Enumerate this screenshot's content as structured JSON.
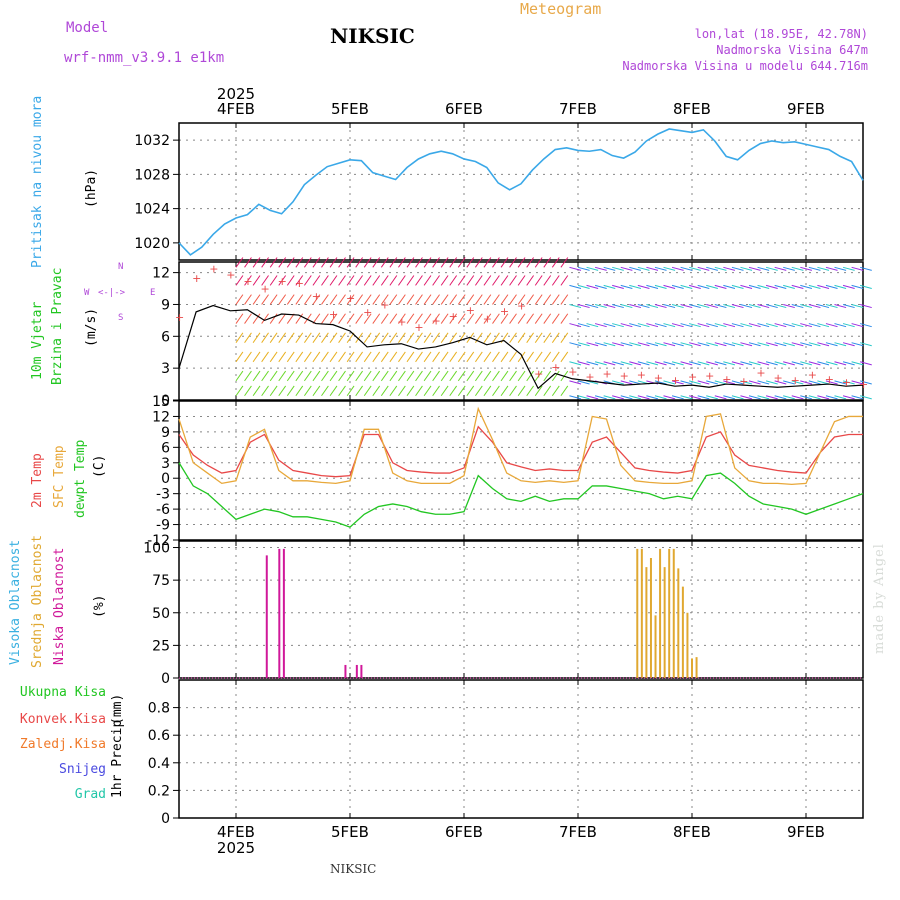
{
  "header": {
    "model_label": "Model",
    "model_name": "wrf-nmm_v3.9.1 e1km",
    "station": "NIKSIC",
    "chart_kind": "Meteogram",
    "coords": "lon,lat (18.95E, 42.78N)",
    "elevation": "Nadmorska Visina 647m",
    "model_elevation": "Nadmorska Visina u modelu 644.716m"
  },
  "footer": {
    "station": "NIKSIC",
    "credit": "made by Angel"
  },
  "colors": {
    "pressure": "#3aa8e8",
    "temp2m": "#e84848",
    "sfc": "#e8a83a",
    "dew": "#22c622",
    "high_cloud": "#3ab0e0",
    "mid_cloud": "#e0a830",
    "low_cloud": "#d0189a"
  },
  "chart_data": [
    {
      "type": "line",
      "panel": "pressure",
      "ylabel_lines": [
        "Pritisak na nivou mora"
      ],
      "unit": "(hPa)",
      "ylim": [
        1018,
        1034
      ],
      "yticks": [
        1020,
        1024,
        1028,
        1032
      ],
      "x_top_year": "2025",
      "x_ticks": [
        "4FEB",
        "5FEB",
        "6FEB",
        "7FEB",
        "8FEB",
        "9FEB"
      ],
      "x": [
        0,
        0.1,
        0.2,
        0.3,
        0.4,
        0.5,
        0.6,
        0.7,
        0.8,
        0.9,
        1.0,
        1.1,
        1.2,
        1.3,
        1.4,
        1.5,
        1.6,
        1.7,
        1.8,
        1.9,
        2.0,
        2.1,
        2.2,
        2.3,
        2.4,
        2.5,
        2.6,
        2.7,
        2.8,
        2.9,
        3.0,
        3.1,
        3.2,
        3.3,
        3.4,
        3.5,
        3.6,
        3.7,
        3.8,
        3.9,
        4.0,
        4.1,
        4.2,
        4.3,
        4.4,
        4.5,
        4.6,
        4.7,
        4.8,
        4.9,
        5.0,
        5.1,
        5.2,
        5.3,
        5.4,
        5.5,
        5.6,
        5.7,
        5.8,
        5.9,
        6.0
      ],
      "series": [
        {
          "values": [
            1020.0,
            1018.6,
            1019.5,
            1021.0,
            1022.2,
            1022.9,
            1023.3,
            1024.5,
            1023.8,
            1023.4,
            1024.8,
            1026.8,
            1027.9,
            1028.9,
            1029.3,
            1029.7,
            1029.6,
            1028.2,
            1027.8,
            1027.4,
            1028.8,
            1029.8,
            1030.4,
            1030.7,
            1030.4,
            1029.8,
            1029.5,
            1028.8,
            1027.0,
            1026.2,
            1026.9,
            1028.5,
            1029.8,
            1030.9,
            1031.1,
            1030.8,
            1030.7,
            1030.9,
            1030.2,
            1029.9,
            1030.6,
            1031.9,
            1032.7,
            1033.3,
            1033.1,
            1032.9,
            1033.2,
            1031.9,
            1030.1,
            1029.7,
            1030.8,
            1031.6,
            1031.9,
            1031.7,
            1031.8,
            1031.5,
            1031.2,
            1030.9,
            1030.1,
            1029.5,
            1027.3
          ]
        }
      ]
    },
    {
      "type": "line",
      "panel": "wind",
      "ylabel_lines": [
        "10m Vjetar",
        "Brzina i Pravac"
      ],
      "unit": "(m/s)",
      "compass": {
        "north": "N",
        "south": "S",
        "east": "E",
        "west": "W"
      },
      "ylim": [
        0,
        13
      ],
      "yticks": [
        0,
        3,
        6,
        9,
        12
      ],
      "x": [
        0,
        0.15,
        0.3,
        0.45,
        0.6,
        0.75,
        0.9,
        1.05,
        1.2,
        1.35,
        1.5,
        1.65,
        1.8,
        1.95,
        2.1,
        2.25,
        2.4,
        2.55,
        2.7,
        2.85,
        3.0,
        3.15,
        3.3,
        3.45,
        3.6,
        3.75,
        3.9,
        4.05,
        4.2,
        4.35,
        4.5,
        4.65,
        4.8,
        4.95,
        5.1,
        5.25,
        5.4,
        5.55,
        5.7,
        5.85,
        6.0
      ],
      "series": [
        {
          "values": [
            3.0,
            8.3,
            8.9,
            8.4,
            8.5,
            7.5,
            8.1,
            8.0,
            7.2,
            7.1,
            6.5,
            5.0,
            5.2,
            5.3,
            4.8,
            5.0,
            5.4,
            5.9,
            5.2,
            5.6,
            4.3,
            1.1,
            2.5,
            2.0,
            1.8,
            1.6,
            1.4,
            1.5,
            1.6,
            1.3,
            1.4,
            1.2,
            1.5,
            1.4,
            1.3,
            1.2,
            1.3,
            1.4,
            1.5,
            1.3,
            1.4
          ]
        },
        {
          "values": [
            7.8,
            11.5,
            12.4,
            11.8,
            11.2,
            10.5,
            11.2,
            11.0,
            9.8,
            8.1,
            9.6,
            8.3,
            9.0,
            7.4,
            6.9,
            7.5,
            7.9,
            8.5,
            7.7,
            8.4,
            8.9,
            2.5,
            3.1,
            2.7,
            2.2,
            2.5,
            2.3,
            2.4,
            2.1,
            1.9,
            2.2,
            2.3,
            2.0,
            1.8,
            2.6,
            2.1,
            1.9,
            2.4,
            2.0,
            1.7,
            1.5
          ]
        }
      ]
    },
    {
      "type": "line",
      "panel": "temperature",
      "ylabel_lines": [
        "2m Temp",
        "SFC Temp",
        "dewpt Temp"
      ],
      "unit": "(C)",
      "ylim": [
        -12,
        15
      ],
      "yticks": [
        -12,
        -9,
        -6,
        -3,
        0,
        3,
        6,
        9,
        12,
        15
      ],
      "x": [
        0,
        0.125,
        0.25,
        0.375,
        0.5,
        0.625,
        0.75,
        0.875,
        1.0,
        1.125,
        1.25,
        1.375,
        1.5,
        1.625,
        1.75,
        1.875,
        2.0,
        2.125,
        2.25,
        2.375,
        2.5,
        2.625,
        2.75,
        2.875,
        3.0,
        3.125,
        3.25,
        3.375,
        3.5,
        3.625,
        3.75,
        3.875,
        4.0,
        4.125,
        4.25,
        4.375,
        4.5,
        4.625,
        4.75,
        4.875,
        5.0,
        5.125,
        5.25,
        5.375,
        5.5,
        5.625,
        5.75,
        5.875,
        6.0
      ],
      "series": [
        {
          "name": "2m Temp",
          "values": [
            8.5,
            4.5,
            2.5,
            1.0,
            1.5,
            7.0,
            8.5,
            3.5,
            1.5,
            1.0,
            0.5,
            0.3,
            0.5,
            8.5,
            8.5,
            3.0,
            1.5,
            1.2,
            1.0,
            1.0,
            2.0,
            10.0,
            7.0,
            3.0,
            2.2,
            1.5,
            1.8,
            1.5,
            1.5,
            7.0,
            8.0,
            5.0,
            2.0,
            1.5,
            1.2,
            1.0,
            1.5,
            8.0,
            9.0,
            4.5,
            2.5,
            2.0,
            1.5,
            1.2,
            1.0,
            5.0,
            8.0,
            8.5,
            8.5
          ]
        },
        {
          "name": "SFC Temp",
          "values": [
            11.5,
            3.0,
            1.0,
            -1.0,
            -0.5,
            8.0,
            9.5,
            1.5,
            -0.5,
            -0.5,
            -0.8,
            -1.0,
            -0.5,
            9.5,
            9.5,
            1.0,
            -0.5,
            -1.0,
            -1.0,
            -1.0,
            0.5,
            13.5,
            7.5,
            1.0,
            -0.5,
            -0.8,
            -0.5,
            -0.8,
            -0.5,
            12.0,
            11.5,
            2.5,
            -0.5,
            -0.8,
            -1.0,
            -1.0,
            -0.5,
            12.0,
            12.5,
            2.0,
            -0.5,
            -1.0,
            -1.0,
            -1.2,
            -1.0,
            5.0,
            11.0,
            12.0,
            12.0
          ]
        },
        {
          "name": "dewpt Temp",
          "values": [
            3.0,
            -1.5,
            -3.0,
            -5.5,
            -8.0,
            -7.0,
            -6.0,
            -6.5,
            -7.5,
            -7.5,
            -8.0,
            -8.5,
            -9.5,
            -7.0,
            -5.5,
            -5.0,
            -5.5,
            -6.5,
            -7.0,
            -7.0,
            -6.5,
            0.5,
            -2.0,
            -4.0,
            -4.5,
            -3.5,
            -4.5,
            -4.0,
            -4.0,
            -1.5,
            -1.5,
            -2.0,
            -2.5,
            -3.0,
            -4.0,
            -3.5,
            -4.0,
            0.5,
            1.0,
            -1.0,
            -3.5,
            -5.0,
            -5.5,
            -6.0,
            -7.0,
            -6.0,
            -5.0,
            -4.0,
            -3.0
          ]
        }
      ]
    },
    {
      "type": "bar",
      "panel": "cloud",
      "ylabel_lines": [
        "Visoka Oblacnost",
        "Srednja Oblacnost",
        "Niska Oblacnost"
      ],
      "unit": "(%)",
      "ylim": [
        0,
        105
      ],
      "yticks": [
        0,
        25,
        50,
        75,
        100
      ],
      "series": [
        {
          "name": "Niska Oblacnost",
          "x": [
            0.27,
            0.38,
            0.42,
            0.96,
            1.06,
            1.1
          ],
          "values": [
            94,
            99,
            99,
            10,
            10,
            10
          ]
        },
        {
          "name": "Srednja Oblacnost",
          "x": [
            3.52,
            3.56,
            3.6,
            3.64,
            3.68,
            3.72,
            3.76,
            3.8,
            3.84,
            3.88,
            3.92,
            3.96,
            4.0,
            4.04
          ],
          "values": [
            99,
            99,
            85,
            92,
            48,
            99,
            85,
            99,
            99,
            84,
            70,
            50,
            15,
            16
          ]
        },
        {
          "name": "Visoka Oblacnost",
          "x": [],
          "values": []
        }
      ]
    },
    {
      "type": "bar",
      "panel": "precip",
      "ylabel_lines": [
        "1hr Precip"
      ],
      "unit": "(mm)",
      "legend": [
        "Ukupna Kisa",
        "Konvek.Kisa",
        "Zaledj.Kisa",
        "Snijeg",
        "Grad"
      ],
      "ylim": [
        0,
        1.0
      ],
      "yticks": [
        0,
        0.2,
        0.4,
        0.6,
        0.8
      ],
      "x_ticks": [
        "4FEB",
        "5FEB",
        "6FEB",
        "7FEB",
        "8FEB",
        "9FEB"
      ],
      "x_bottom_year": "2025",
      "series": []
    }
  ]
}
